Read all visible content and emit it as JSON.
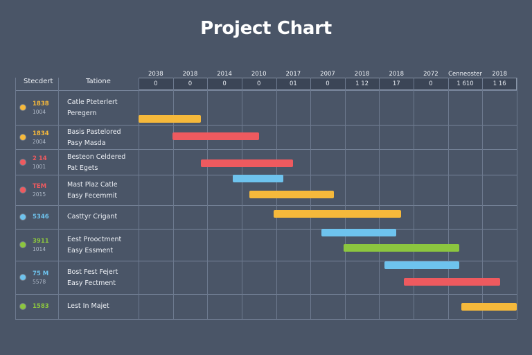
{
  "colors": {
    "background": "#4a5567",
    "yellow": "#f6b93b",
    "red": "#ee5a5f",
    "blue": "#6ec3ee",
    "green": "#8cc63f"
  },
  "chart_data": {
    "type": "gantt",
    "title": "Project Chart",
    "columns": {
      "left": "Stecdert",
      "right": "Tatione"
    },
    "years": [
      "2038",
      "2018",
      "2014",
      "2010",
      "2017",
      "2007",
      "2018",
      "2018",
      "2072",
      "Cenneoster",
      "2018"
    ],
    "ticks": [
      "0",
      "0",
      "0",
      "0",
      "01",
      "0",
      "1 12",
      "17",
      "0",
      "1 610",
      "1 16"
    ],
    "rows": [
      {
        "code": "1838",
        "sub": "1004",
        "color": "yellow",
        "task_lines": [
          "Catle Pteterlert",
          "Peregern"
        ]
      },
      {
        "code": "1834",
        "sub": "2004",
        "color": "yellow",
        "task_lines": [
          "Basis Pastelored",
          "Pasy Masda"
        ]
      },
      {
        "code": "2 14",
        "sub": "1001",
        "color": "red",
        "task_lines": [
          "Besteon Celdered",
          "Pat Egets"
        ]
      },
      {
        "code": "TEM",
        "sub": "2015",
        "color": "red",
        "task_lines": [
          "Mast Plaz Catle",
          "Easy Fecemmit"
        ]
      },
      {
        "code": "5346",
        "sub": "",
        "color": "blue",
        "task_lines": [
          "Casttyr Crigant"
        ]
      },
      {
        "code": "3911",
        "sub": "1014",
        "color": "green",
        "task_lines": [
          "Eest Prooctment",
          "Easy Essment"
        ]
      },
      {
        "code": "75 M",
        "sub": "5578",
        "color": "blue",
        "task_lines": [
          "Bost Fest Fejert",
          "Easy Fectment"
        ]
      },
      {
        "code": "1583",
        "sub": "",
        "color": "green",
        "task_lines": [
          "Lest In Majet"
        ]
      }
    ],
    "bars": [
      {
        "start": 0.0,
        "end": 1.3,
        "color": "yellow"
      },
      {
        "start": 0.7,
        "end": 2.5,
        "color": "red"
      },
      {
        "start": 1.3,
        "end": 3.2,
        "color": "red"
      },
      {
        "start": 1.95,
        "end": 3.0,
        "color": "blue"
      },
      {
        "start": 2.3,
        "end": 4.05,
        "color": "yellow"
      },
      {
        "start": 2.8,
        "end": 5.45,
        "color": "yellow"
      },
      {
        "start": 3.8,
        "end": 5.35,
        "color": "blue"
      },
      {
        "start": 4.25,
        "end": 6.65,
        "color": "green"
      },
      {
        "start": 5.1,
        "end": 6.65,
        "color": "blue"
      },
      {
        "start": 5.5,
        "end": 7.5,
        "color": "red"
      },
      {
        "start": 6.7,
        "end": 7.85,
        "color": "yellow"
      }
    ],
    "x_range": [
      0,
      7.85
    ]
  }
}
